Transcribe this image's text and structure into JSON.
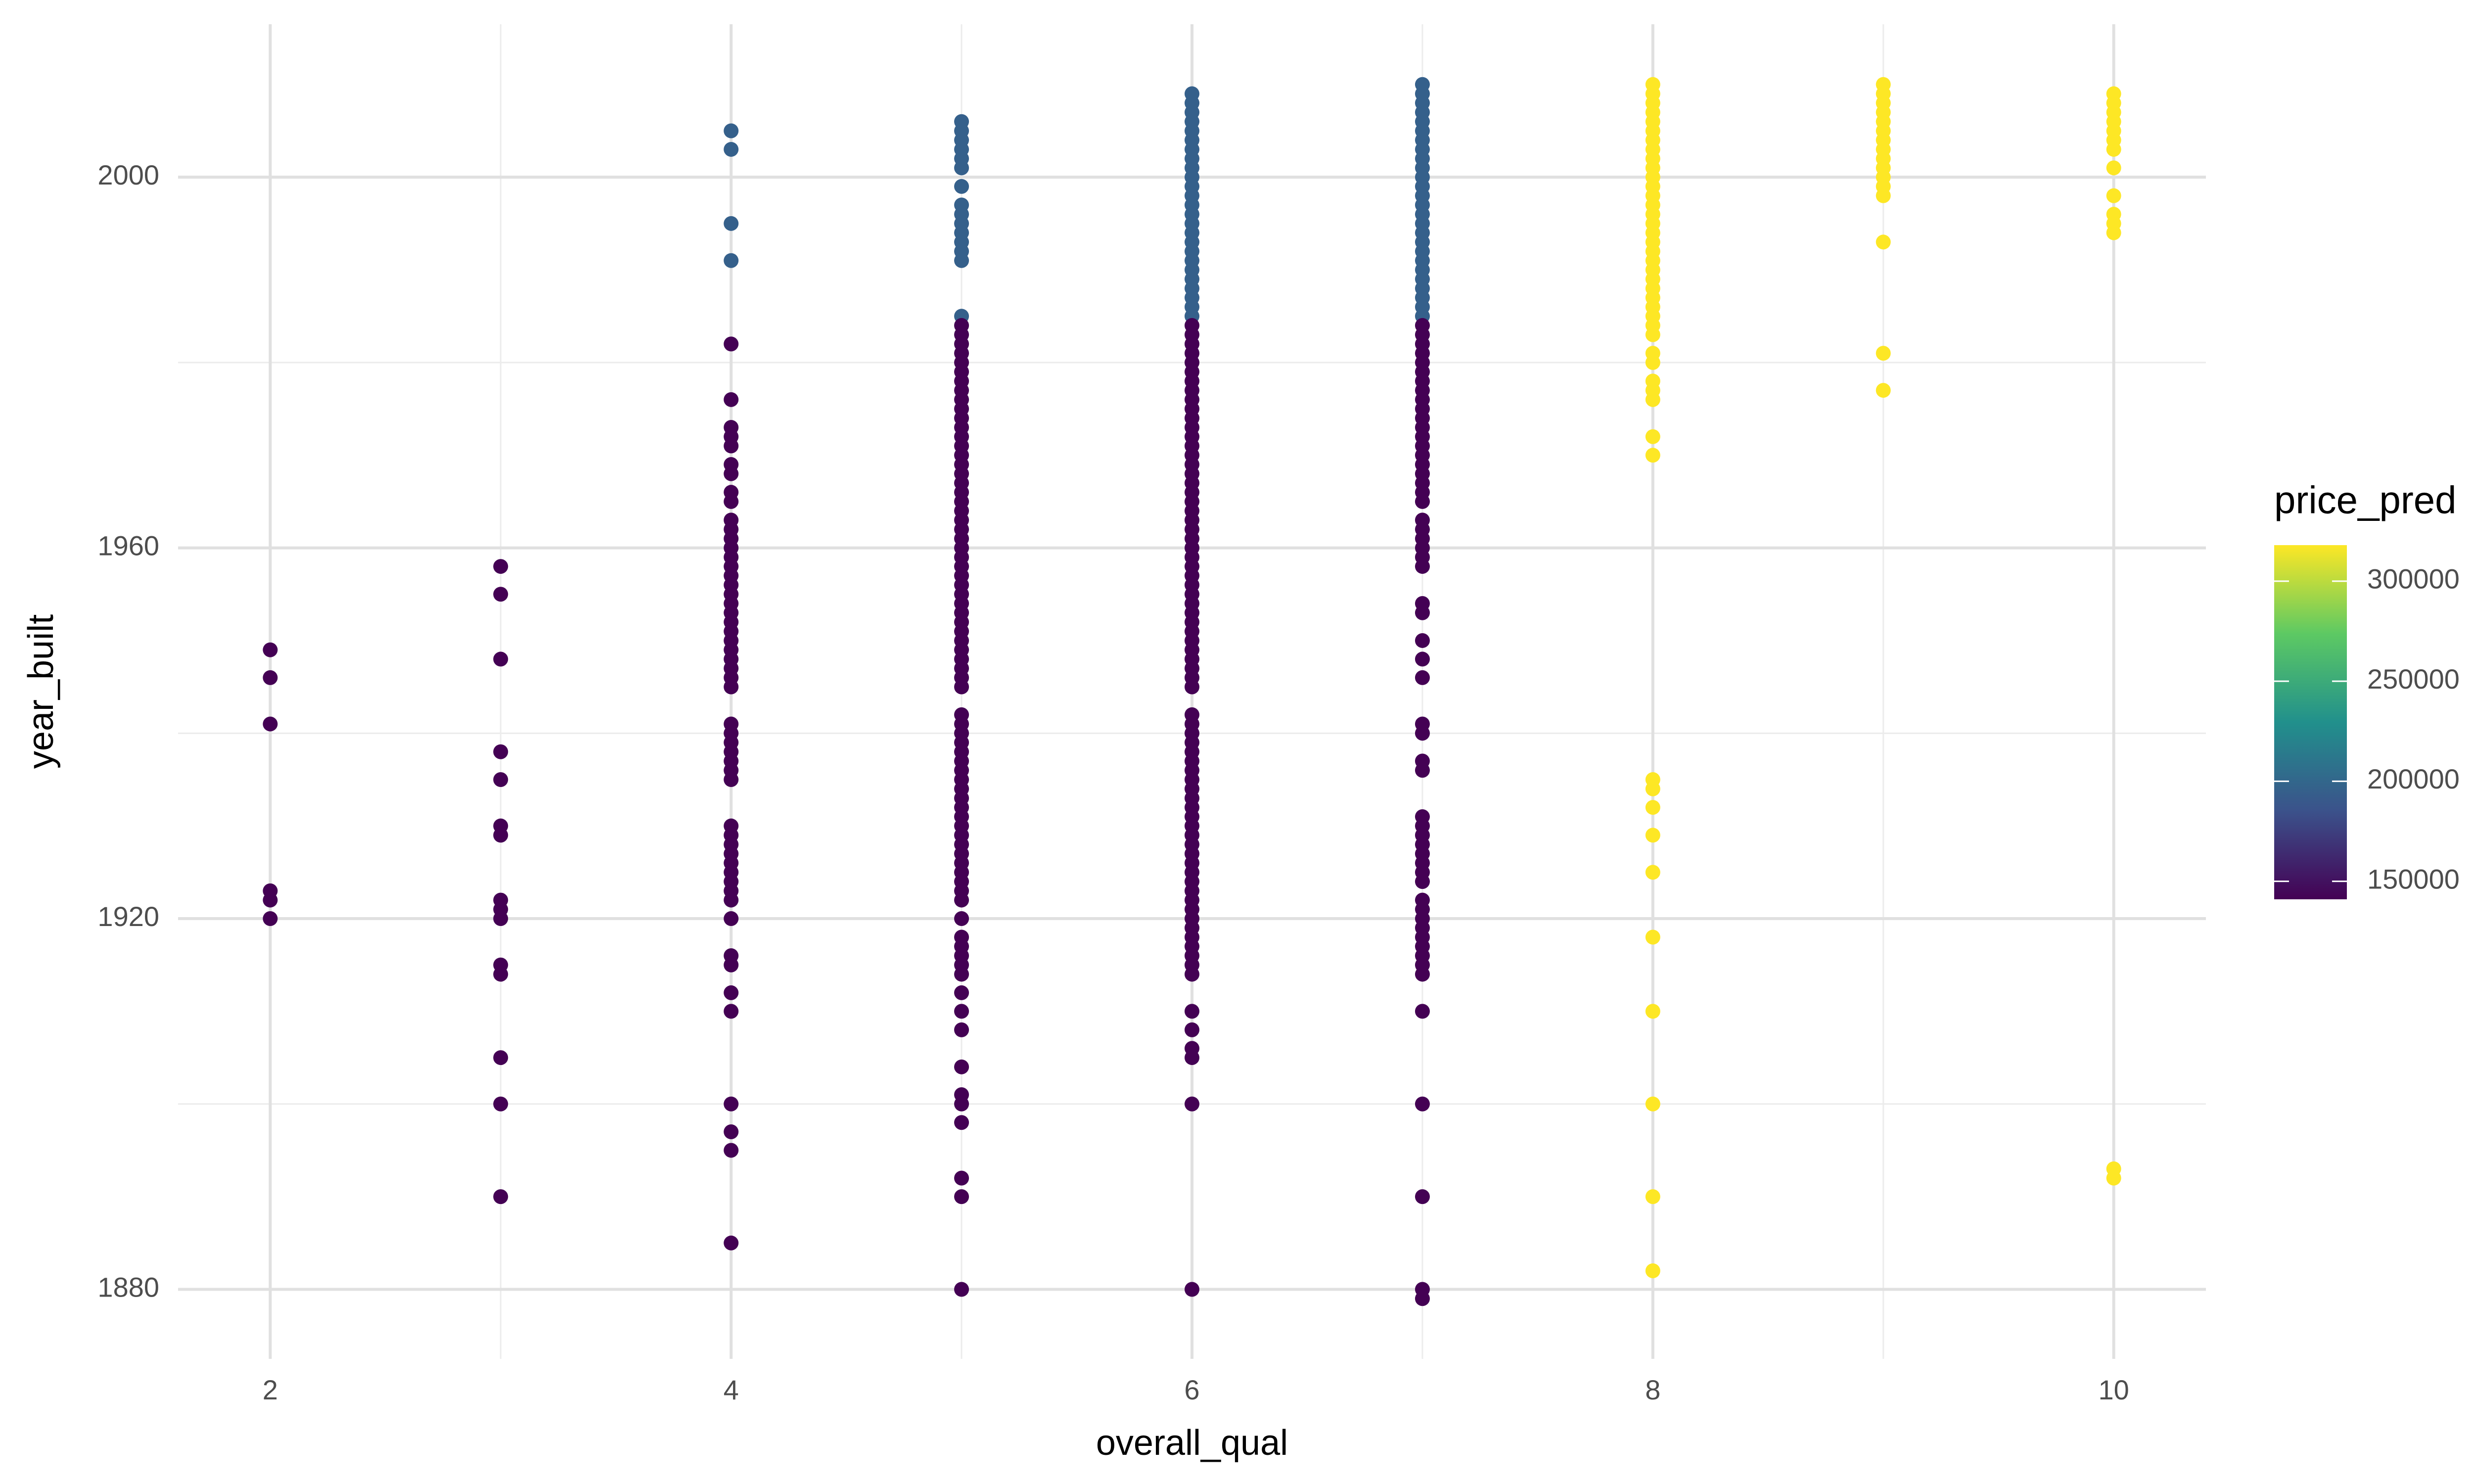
{
  "chart_data": {
    "type": "scatter",
    "x_label": "overall_qual",
    "y_label": "year_built",
    "xlim": [
      1.6,
      10.4
    ],
    "xticks": [
      2,
      4,
      6,
      8,
      10
    ],
    "xminor": [
      3,
      5,
      7,
      9
    ],
    "ylim": [
      1872.5,
      2016.5
    ],
    "yticks": [
      1880,
      1920,
      1960,
      2000
    ],
    "yminor": [
      1900,
      1940,
      1980
    ],
    "grid": true,
    "legend": {
      "title": "price_pred",
      "position": "right",
      "colorlim": [
        141000,
        318000
      ],
      "ticks": [
        150000,
        200000,
        250000,
        300000
      ],
      "colors": [
        "#440154",
        "#3b528b",
        "#21908c",
        "#5dc963",
        "#fde725"
      ]
    },
    "series": [
      {
        "x": 2,
        "price_pred": 141000,
        "y": [
          1949,
          1946,
          1941,
          1923,
          1922,
          1920
        ]
      },
      {
        "x": 3,
        "price_pred": 141000,
        "y": [
          1958,
          1955,
          1948,
          1938,
          1935,
          1930,
          1929,
          1922,
          1921,
          1920,
          1915,
          1914,
          1905,
          1900,
          1890
        ]
      },
      {
        "x": 4,
        "price_pred": 195000,
        "y": [
          2005,
          2003,
          1995,
          1991
        ]
      },
      {
        "x": 4,
        "price_pred": 141000,
        "y": [
          1982,
          1976,
          1973,
          1972,
          1971,
          1969,
          1968,
          1966,
          1965,
          1963,
          1962,
          1961,
          1960,
          1959,
          1958,
          1957,
          1956,
          1955,
          1954,
          1953,
          1952,
          1951,
          1950,
          1949,
          1948,
          1947,
          1946,
          1945,
          1941,
          1940,
          1939,
          1938,
          1937,
          1936,
          1935,
          1930,
          1929,
          1928,
          1927,
          1926,
          1925,
          1924,
          1923,
          1922,
          1920,
          1916,
          1915,
          1912,
          1910,
          1900,
          1897,
          1895,
          1885
        ]
      },
      {
        "x": 5,
        "price_pred": 195000,
        "y": [
          2006,
          2005,
          2004,
          2003,
          2002,
          2001,
          1999,
          1997,
          1996,
          1995,
          1994,
          1993,
          1992,
          1991,
          1985
        ]
      },
      {
        "x": 5,
        "price_pred": 141000,
        "y": [
          1984,
          1983,
          1982,
          1981,
          1980,
          1979,
          1978,
          1977,
          1976,
          1975,
          1974,
          1973,
          1972,
          1971,
          1970,
          1969,
          1968,
          1967,
          1966,
          1965,
          1964,
          1963,
          1962,
          1961,
          1960,
          1959,
          1958,
          1957,
          1956,
          1955,
          1954,
          1953,
          1952,
          1951,
          1950,
          1949,
          1948,
          1947,
          1946,
          1945,
          1942,
          1941,
          1940,
          1939,
          1938,
          1937,
          1936,
          1935,
          1934,
          1933,
          1932,
          1931,
          1930,
          1929,
          1928,
          1927,
          1926,
          1925,
          1924,
          1923,
          1922,
          1920,
          1918,
          1917,
          1916,
          1915,
          1914,
          1912,
          1910,
          1908,
          1904,
          1901,
          1900,
          1898,
          1892,
          1890,
          1880
        ]
      },
      {
        "x": 6,
        "price_pred": 195000,
        "y": [
          2009,
          2008,
          2007,
          2006,
          2005,
          2004,
          2003,
          2002,
          2001,
          2000,
          1999,
          1998,
          1997,
          1996,
          1995,
          1994,
          1993,
          1992,
          1991,
          1990,
          1989,
          1988,
          1987,
          1986,
          1985
        ]
      },
      {
        "x": 6,
        "price_pred": 141000,
        "y": [
          1984,
          1983,
          1982,
          1981,
          1980,
          1979,
          1978,
          1977,
          1976,
          1975,
          1974,
          1973,
          1972,
          1971,
          1970,
          1969,
          1968,
          1967,
          1966,
          1965,
          1964,
          1963,
          1962,
          1961,
          1960,
          1959,
          1958,
          1957,
          1956,
          1955,
          1954,
          1953,
          1952,
          1951,
          1950,
          1949,
          1948,
          1947,
          1946,
          1945,
          1942,
          1941,
          1940,
          1939,
          1938,
          1937,
          1936,
          1935,
          1934,
          1933,
          1932,
          1931,
          1930,
          1929,
          1928,
          1927,
          1926,
          1925,
          1924,
          1923,
          1922,
          1921,
          1920,
          1919,
          1918,
          1917,
          1916,
          1915,
          1914,
          1910,
          1908,
          1906,
          1905,
          1900,
          1880
        ]
      },
      {
        "x": 7,
        "price_pred": 195000,
        "y": [
          2010,
          2009,
          2008,
          2007,
          2006,
          2005,
          2004,
          2003,
          2002,
          2001,
          2000,
          1999,
          1998,
          1997,
          1996,
          1995,
          1994,
          1993,
          1992,
          1991,
          1990,
          1989,
          1988,
          1987,
          1986,
          1985
        ]
      },
      {
        "x": 7,
        "price_pred": 141000,
        "y": [
          1984,
          1983,
          1982,
          1981,
          1980,
          1979,
          1978,
          1977,
          1976,
          1975,
          1974,
          1973,
          1972,
          1971,
          1970,
          1969,
          1968,
          1967,
          1966,
          1965,
          1963,
          1962,
          1961,
          1960,
          1959,
          1958,
          1954,
          1953,
          1950,
          1948,
          1946,
          1941,
          1940,
          1937,
          1936,
          1931,
          1930,
          1929,
          1928,
          1927,
          1926,
          1925,
          1924,
          1922,
          1921,
          1920,
          1919,
          1918,
          1917,
          1916,
          1915,
          1914,
          1910,
          1900,
          1890,
          1880,
          1879
        ]
      },
      {
        "x": 8,
        "price_pred": 318000,
        "y": [
          2010,
          2009,
          2008,
          2007,
          2006,
          2005,
          2004,
          2003,
          2002,
          2001,
          2000,
          1999,
          1998,
          1997,
          1996,
          1995,
          1994,
          1993,
          1992,
          1991,
          1990,
          1989,
          1988,
          1987,
          1986,
          1985,
          1984,
          1983,
          1981,
          1980,
          1978,
          1977,
          1976,
          1972,
          1970,
          1935,
          1934,
          1932,
          1929,
          1925,
          1918,
          1910,
          1900,
          1890,
          1882
        ]
      },
      {
        "x": 9,
        "price_pred": 318000,
        "y": [
          2010,
          2009,
          2008,
          2007,
          2006,
          2005,
          2004,
          2003,
          2002,
          2001,
          2000,
          1999,
          1998,
          1993,
          1981,
          1977
        ]
      },
      {
        "x": 10,
        "price_pred": 318000,
        "y": [
          2009,
          2008,
          2007,
          2006,
          2005,
          2004,
          2003,
          2001,
          1998,
          1996,
          1995,
          1994,
          1893,
          1892
        ]
      }
    ]
  }
}
